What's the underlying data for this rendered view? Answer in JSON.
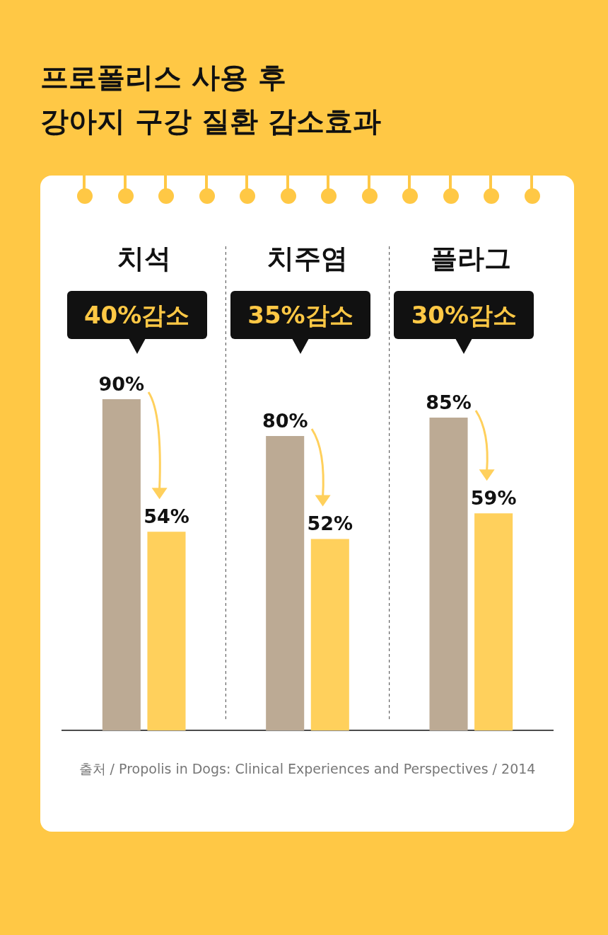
{
  "chart_data": {
    "type": "bar",
    "title": "프로폴리스 사용 후\n강아지 구강 질환 감소효과",
    "categories": [
      "치석",
      "치주염",
      "플라그"
    ],
    "series": [
      {
        "color": "#bcaa94",
        "values": [
          90,
          80,
          85
        ],
        "value_labels": [
          "90%",
          "80%",
          "85%"
        ]
      },
      {
        "color": "#ffd05c",
        "values": [
          54,
          52,
          59
        ],
        "value_labels": [
          "54%",
          "52%",
          "59%"
        ]
      }
    ],
    "tick_labels": "x",
    "annotations": [
      "40%감소",
      "35%감소",
      "30%감소",
      "출처 / Propolis in Dogs: Clinical Experiences and Perspectives / 2014"
    ]
  }
}
